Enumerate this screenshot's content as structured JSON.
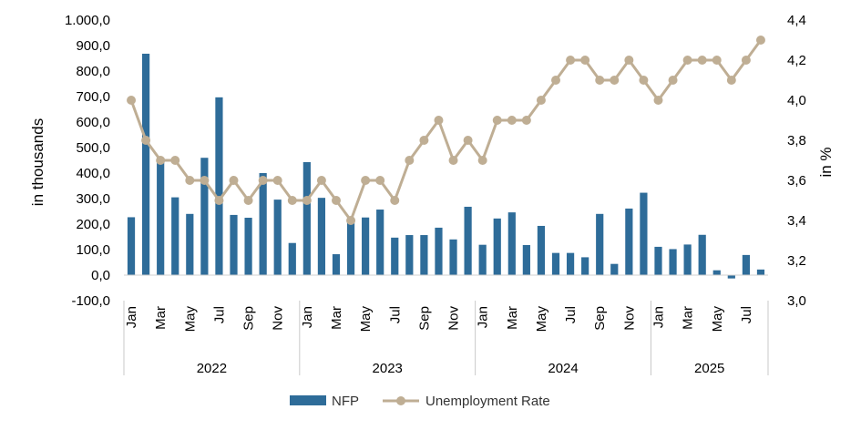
{
  "chart_data": {
    "type": "bar+line",
    "x_month_labels": [
      "Jan",
      "",
      "Mar",
      "",
      "May",
      "",
      "Jul",
      "",
      "Sep",
      "",
      "Nov",
      "",
      "Jan",
      "",
      "Mar",
      "",
      "May",
      "",
      "Jul",
      "",
      "Sep",
      "",
      "Nov",
      "",
      "Jan",
      "",
      "Mar",
      "",
      "May",
      "",
      "Jul",
      "",
      "Sep",
      "",
      "Nov",
      "",
      "Jan",
      "",
      "Mar",
      "",
      "May",
      "",
      "Jul",
      ""
    ],
    "year_groups": [
      {
        "label": "2022",
        "months": 12
      },
      {
        "label": "2023",
        "months": 12
      },
      {
        "label": "2024",
        "months": 12
      },
      {
        "label": "2025",
        "months": 8
      }
    ],
    "ylabel_left": "in thousands",
    "ylabel_right": "in %",
    "ylim_left": [
      -100,
      1000
    ],
    "yticks_left": [
      "-100,0",
      "0,0",
      "100,0",
      "200,0",
      "300,0",
      "400,0",
      "500,0",
      "600,0",
      "700,0",
      "800,0",
      "900,0",
      "1.000,0"
    ],
    "ylim_right": [
      3.0,
      4.4
    ],
    "yticks_right": [
      "3,0",
      "3,2",
      "3,4",
      "3,6",
      "3,8",
      "4,0",
      "4,2",
      "4,4"
    ],
    "grid": false,
    "legend_position": "bottom-center",
    "series": [
      {
        "name": "NFP",
        "kind": "bar",
        "axis": "left",
        "color": "#2e6c99",
        "values": [
          227,
          868,
          460,
          305,
          240,
          460,
          697,
          236,
          225,
          400,
          296,
          126,
          443,
          303,
          82,
          220,
          226,
          257,
          147,
          157,
          157,
          186,
          140,
          268,
          119,
          222,
          246,
          118,
          193,
          87,
          87,
          70,
          240,
          44,
          261,
          323,
          111,
          102,
          120,
          158,
          19,
          -13,
          79,
          22
        ]
      },
      {
        "name": "Unemployment Rate",
        "kind": "line",
        "axis": "right",
        "color": "#bfae94",
        "values": [
          4.0,
          3.8,
          3.7,
          3.7,
          3.6,
          3.6,
          3.5,
          3.6,
          3.5,
          3.6,
          3.6,
          3.5,
          3.5,
          3.6,
          3.5,
          3.4,
          3.6,
          3.6,
          3.5,
          3.7,
          3.8,
          3.9,
          3.7,
          3.8,
          3.7,
          3.9,
          3.9,
          3.9,
          4.0,
          4.1,
          4.2,
          4.2,
          4.1,
          4.1,
          4.2,
          4.1,
          4.0,
          4.1,
          4.2,
          4.2,
          4.2,
          4.1,
          4.2,
          4.3
        ]
      }
    ]
  }
}
